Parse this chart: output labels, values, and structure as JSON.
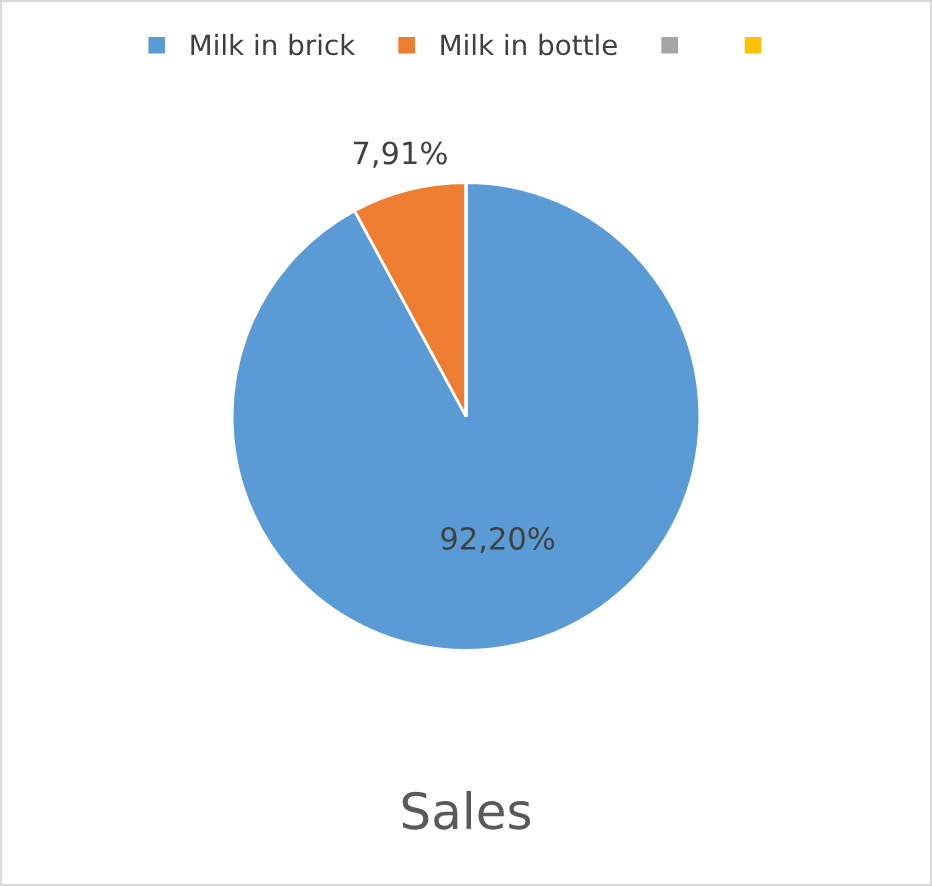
{
  "chart_data": {
    "type": "pie",
    "title": "Sales",
    "categories": [
      "Milk in brick",
      "Milk in bottle",
      null,
      null
    ],
    "values": [
      92.2,
      7.91,
      0,
      0
    ],
    "colors": [
      "#5b9bd5",
      "#ed7d31",
      "#a5a5a5",
      "#ffc000"
    ],
    "value_labels": [
      "92,20%",
      "7,91%",
      null,
      null
    ],
    "legend": "top"
  }
}
